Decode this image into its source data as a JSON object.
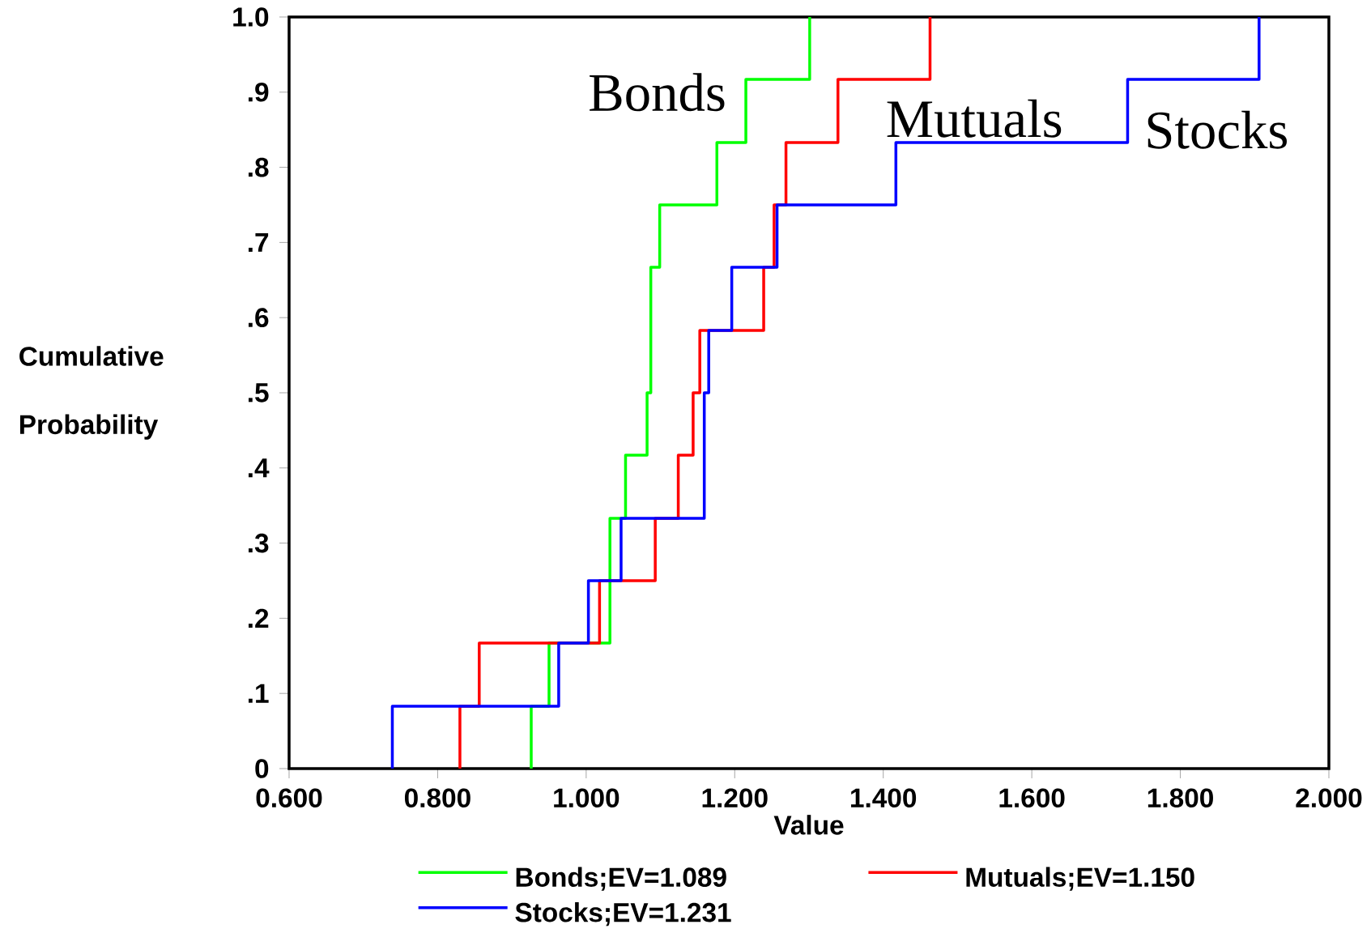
{
  "chart_data": {
    "type": "step",
    "xlabel": "Value",
    "ylabel": "Cumulative Probability",
    "series": [
      {
        "name": "Bonds;EV=1.089",
        "color": "#00ff00",
        "x": [
          0.926,
          0.926,
          0.95,
          1.032,
          1.053,
          1.082,
          1.087,
          1.099,
          1.176,
          1.215,
          1.301
        ],
        "values": [
          0,
          0.083,
          0.167,
          0.333,
          0.417,
          0.5,
          0.667,
          0.75,
          0.833,
          0.917,
          1.0
        ]
      },
      {
        "name": "Mutuals;EV=1.150",
        "color": "#ff0000",
        "x": [
          0.83,
          0.83,
          0.856,
          1.018,
          1.093,
          1.124,
          1.144,
          1.153,
          1.239,
          1.253,
          1.269,
          1.339,
          1.463
        ],
        "values": [
          0,
          0.083,
          0.167,
          0.25,
          0.333,
          0.417,
          0.5,
          0.583,
          0.667,
          0.75,
          0.833,
          0.917,
          1.0
        ]
      },
      {
        "name": "Stocks;EV=1.231",
        "color": "#0000ff",
        "x": [
          0.739,
          0.739,
          0.963,
          1.003,
          1.047,
          1.159,
          1.165,
          1.196,
          1.257,
          1.417,
          1.729,
          1.906
        ],
        "values": [
          0,
          0.083,
          0.167,
          0.25,
          0.333,
          0.5,
          0.583,
          0.667,
          0.75,
          0.833,
          0.917,
          1.0
        ]
      }
    ],
    "xlim": [
      0.6,
      2.0
    ],
    "ylim": [
      0,
      1.0
    ],
    "xticks": [
      {
        "value": 0.6,
        "label": "0.600"
      },
      {
        "value": 0.8,
        "label": "0.800"
      },
      {
        "value": 1.0,
        "label": "1.000"
      },
      {
        "value": 1.2,
        "label": "1.200"
      },
      {
        "value": 1.4,
        "label": "1.400"
      },
      {
        "value": 1.6,
        "label": "1.600"
      },
      {
        "value": 1.8,
        "label": "1.800"
      },
      {
        "value": 2.0,
        "label": "2.000"
      }
    ],
    "yticks": [
      0,
      {
        "value": 0.1,
        "label": ".1"
      },
      {
        "value": 0.2,
        "label": ".2"
      },
      {
        "value": 0.3,
        "label": ".3"
      },
      {
        "value": 0.4,
        "label": ".4"
      },
      {
        "value": 0.5,
        "label": ".5"
      },
      {
        "value": 0.6,
        "label": ".6"
      },
      {
        "value": 0.7,
        "label": ".7"
      },
      {
        "value": 0.8,
        "label": ".8"
      },
      {
        "value": 0.9,
        "label": ".9"
      },
      {
        "value": 1.0,
        "label": "1.0"
      }
    ],
    "annotations": [
      "Bonds",
      "Mutuals",
      "Stocks"
    ],
    "grid": false,
    "legend": "bottom",
    "marker": "none",
    "line_style": "solid"
  }
}
